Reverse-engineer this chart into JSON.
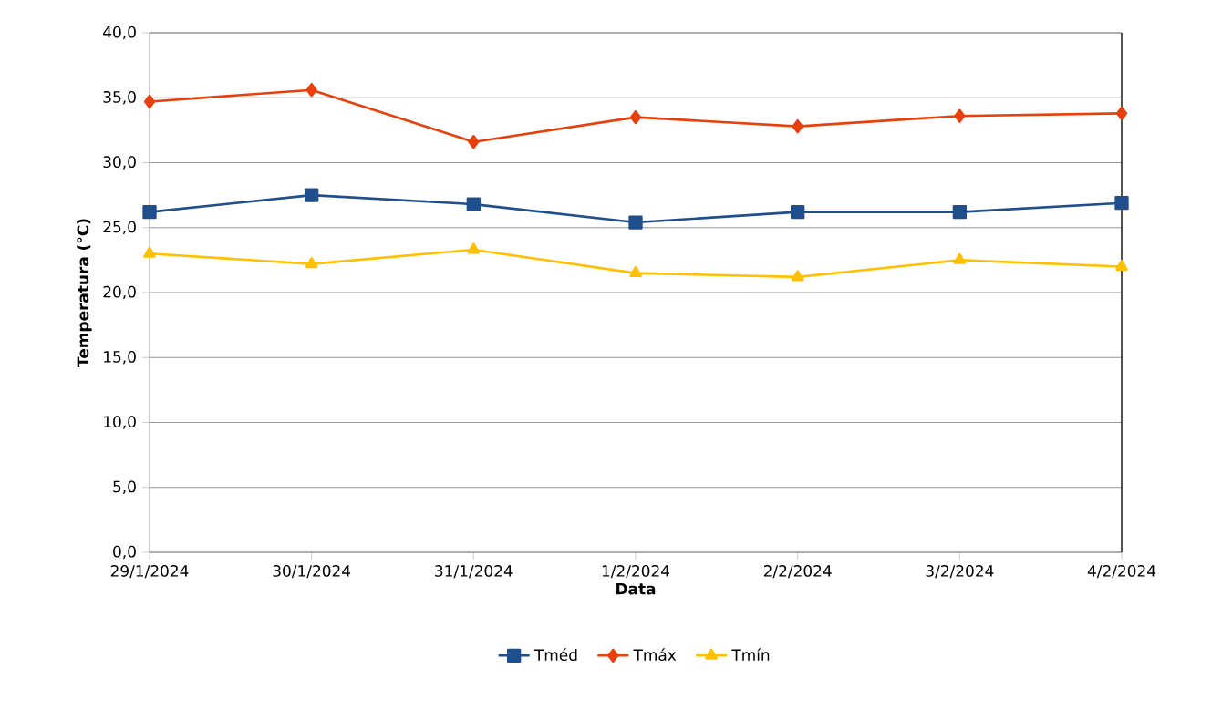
{
  "chart_data": {
    "type": "line",
    "xlabel": "Data",
    "ylabel": "Temperatura (°C)",
    "categories": [
      "29/1/2024",
      "30/1/2024",
      "31/1/2024",
      "1/2/2024",
      "2/2/2024",
      "3/2/2024",
      "4/2/2024"
    ],
    "series": [
      {
        "name": "Tméd",
        "color": "#1f4e8c",
        "marker": "square",
        "values": [
          26.2,
          27.5,
          26.8,
          25.4,
          26.2,
          26.2,
          26.9
        ]
      },
      {
        "name": "Tmáx",
        "color": "#e8400c",
        "marker": "diamond",
        "values": [
          34.7,
          35.6,
          31.6,
          33.5,
          32.8,
          33.6,
          33.8
        ]
      },
      {
        "name": "Tmín",
        "color": "#ffc000",
        "marker": "triangle",
        "values": [
          23.0,
          22.2,
          23.3,
          21.5,
          21.2,
          22.5,
          22.0
        ]
      }
    ],
    "ylim": [
      0,
      40
    ],
    "yticks": [
      {
        "value": 0,
        "label": "0,0"
      },
      {
        "value": 5,
        "label": "5,0"
      },
      {
        "value": 10,
        "label": "10,0"
      },
      {
        "value": 15,
        "label": "15,0"
      },
      {
        "value": 20,
        "label": "20,0"
      },
      {
        "value": 25,
        "label": "25,0"
      },
      {
        "value": 30,
        "label": "30,0"
      },
      {
        "value": 35,
        "label": "35,0"
      },
      {
        "value": 40,
        "label": "40,0"
      }
    ],
    "grid": "y",
    "legend": "bottom",
    "line_style": "solid"
  }
}
